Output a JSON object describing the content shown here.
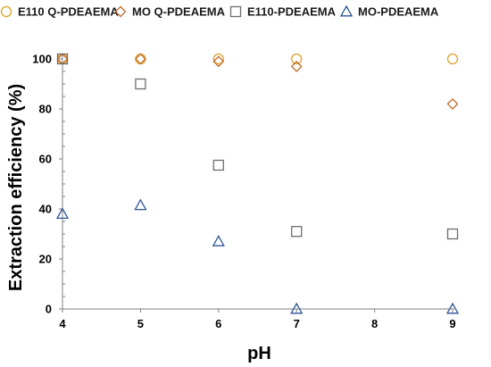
{
  "chart_data": {
    "type": "scatter",
    "title": "",
    "xlabel": "pH",
    "ylabel": "Extraction efficiency (%)",
    "xlim": [
      4,
      9
    ],
    "ylim": [
      0,
      100
    ],
    "xticks": [
      "4",
      "5",
      "6",
      "7",
      "8",
      "9"
    ],
    "yticks": [
      "0",
      "20",
      "40",
      "60",
      "80",
      "100"
    ],
    "grid": false,
    "legend_position": "top",
    "series": [
      {
        "name": "E110 Q-PDEAEMA",
        "marker": "circle",
        "color": "#E0A22A",
        "points": [
          {
            "x": 4,
            "y": 100
          },
          {
            "x": 5,
            "y": 100
          },
          {
            "x": 6,
            "y": 100
          },
          {
            "x": 7,
            "y": 100
          },
          {
            "x": 9,
            "y": 100
          }
        ]
      },
      {
        "name": "MO Q-PDEAEMA",
        "marker": "diamond",
        "color": "#C06A28",
        "points": [
          {
            "x": 4,
            "y": 100
          },
          {
            "x": 5,
            "y": 100
          },
          {
            "x": 6,
            "y": 99
          },
          {
            "x": 7,
            "y": 97
          },
          {
            "x": 9,
            "y": 82
          }
        ]
      },
      {
        "name": "E110-PDEAEMA",
        "marker": "square",
        "color": "#6E6E6E",
        "points": [
          {
            "x": 4,
            "y": 100
          },
          {
            "x": 5,
            "y": 90
          },
          {
            "x": 6,
            "y": 57.5
          },
          {
            "x": 7,
            "y": 31
          },
          {
            "x": 9,
            "y": 30
          }
        ]
      },
      {
        "name": "MO-PDEAEMA",
        "marker": "triangle",
        "color": "#2F5597",
        "points": [
          {
            "x": 4,
            "y": 38
          },
          {
            "x": 5,
            "y": 41.5
          },
          {
            "x": 6,
            "y": 27
          },
          {
            "x": 7,
            "y": 0
          },
          {
            "x": 9,
            "y": 0
          }
        ]
      }
    ]
  }
}
